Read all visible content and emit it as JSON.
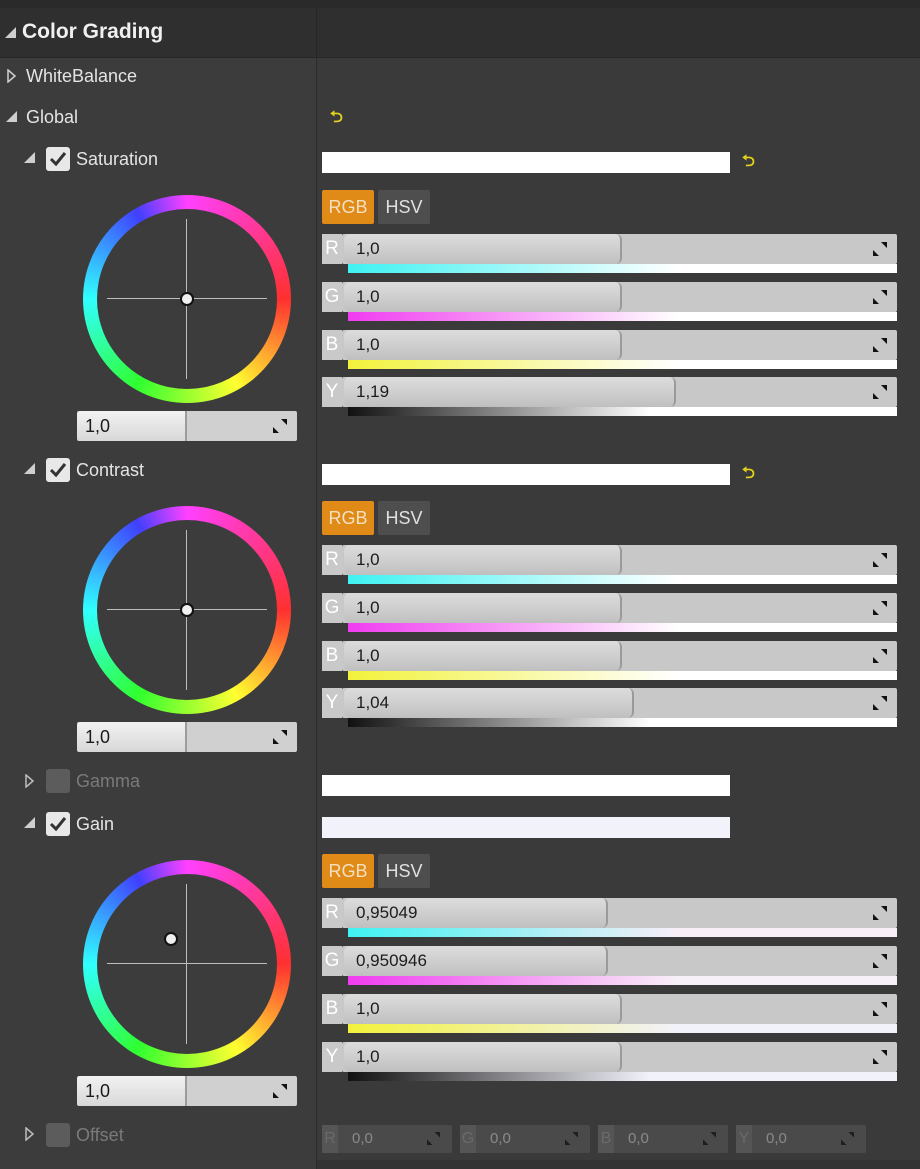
{
  "header": {
    "title": "Color Grading"
  },
  "rows": {
    "white_balance": "WhiteBalance",
    "global": "Global",
    "saturation": "Saturation",
    "contrast": "Contrast",
    "gamma": "Gamma",
    "gain": "Gain",
    "offset": "Offset"
  },
  "reset_glyph": "⮌",
  "tabs": {
    "rgb": "RGB",
    "hsv": "HSV"
  },
  "channel_letters": {
    "r": "R",
    "g": "G",
    "b": "B",
    "y": "Y"
  },
  "saturation": {
    "wheel_value": "1,0",
    "r": "1,0",
    "g": "1,0",
    "b": "1,0",
    "y": "1,19"
  },
  "contrast": {
    "wheel_value": "1,0",
    "r": "1,0",
    "g": "1,0",
    "b": "1,0",
    "y": "1,04"
  },
  "gain": {
    "wheel_value": "1,0",
    "r": "0,95049",
    "g": "0,950946",
    "b": "1,0",
    "y": "1,0"
  },
  "offset": {
    "r": "0,0",
    "g": "0,0",
    "b": "0,0",
    "y": "0,0"
  },
  "colors": {
    "accent": "#e08a18",
    "reset": "#e3d21d",
    "cyan": "#3ff2f2",
    "magenta": "#f03cf0",
    "yellow": "#f2f23c"
  }
}
